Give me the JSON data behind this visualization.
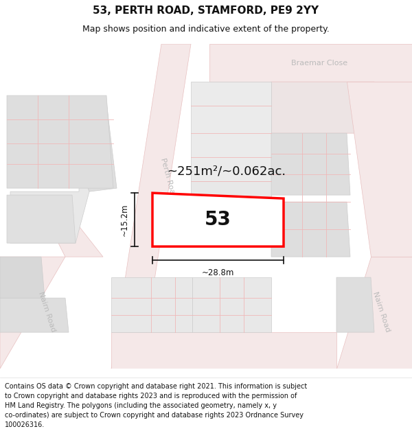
{
  "title": "53, PERTH ROAD, STAMFORD, PE9 2YY",
  "subtitle": "Map shows position and indicative extent of the property.",
  "footer_lines": [
    "Contains OS data © Crown copyright and database right 2021. This information is subject",
    "to Crown copyright and database rights 2023 and is reproduced with the permission of",
    "HM Land Registry. The polygons (including the associated geometry, namely x, y",
    "co-ordinates) are subject to Crown copyright and database rights 2023 Ordnance Survey",
    "100026316."
  ],
  "area_label": "~251m²/~0.062ac.",
  "width_label": "~28.8m",
  "height_label": "~15.2m",
  "number_label": "53",
  "bg_color": "#ffffff",
  "road_fill": "#f5e8e8",
  "road_edge": "#e8c0c0",
  "building_fill": "#dedede",
  "building_edge": "#cccccc",
  "highlight_color": "#ff0000",
  "road_label_color": "#bbbbbb",
  "grid_color": "#f0b8b8",
  "title_fontsize": 11,
  "subtitle_fontsize": 9,
  "footer_fontsize": 7,
  "area_fontsize": 13,
  "number_fontsize": 20,
  "dim_fontsize": 8.5,
  "road_label_fontsize": 8
}
